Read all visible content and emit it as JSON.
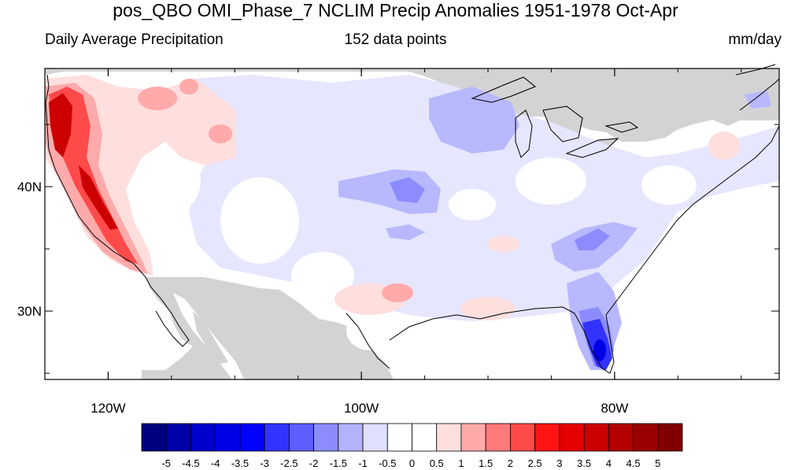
{
  "header": {
    "title": "pos_QBO OMI_Phase_7 NCLIM Precip Anomalies 1951-1978 Oct-Apr",
    "left_label": "Daily Average Precipitation",
    "center_label": "152 data points",
    "right_label": "mm/day"
  },
  "map": {
    "lon_range": [
      -125,
      -67
    ],
    "lat_range": [
      24.5,
      49.5
    ],
    "x_ticks": [
      {
        "value": -120,
        "label": "120W"
      },
      {
        "value": -100,
        "label": "100W"
      },
      {
        "value": -80,
        "label": "80W"
      }
    ],
    "y_ticks": [
      {
        "value": 40,
        "label": "40N"
      },
      {
        "value": 30,
        "label": "30N"
      }
    ],
    "land_mask_color": "#d3d3d3",
    "no_data_color": "#ffffff"
  },
  "colorbar": {
    "colors": [
      "#000080",
      "#0000a8",
      "#0000cc",
      "#0000e6",
      "#0000ff",
      "#3333ff",
      "#5e5eff",
      "#8c8cff",
      "#b3b3ff",
      "#e0e0ff",
      "#ffffff",
      "#ffffff",
      "#ffdede",
      "#ffaaaa",
      "#ff7a7a",
      "#ff4a4a",
      "#ff1414",
      "#e60000",
      "#cc0000",
      "#b30000",
      "#990000",
      "#800000"
    ],
    "labels": [
      "-5",
      "-4.5",
      "-4",
      "-3.5",
      "-3",
      "-2.5",
      "-2",
      "-1.5",
      "-1",
      "-0.5",
      "0",
      "0.5",
      "1",
      "1.5",
      "2",
      "2.5",
      "3",
      "3.5",
      "4",
      "4.5",
      "5"
    ]
  }
}
